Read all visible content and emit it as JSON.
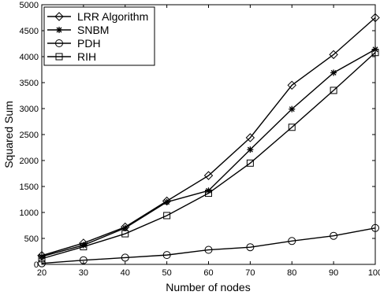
{
  "chart_data": {
    "type": "line",
    "title": "",
    "xlabel": "Number of nodes",
    "ylabel": "Squared Sum",
    "x": [
      20,
      30,
      40,
      50,
      60,
      70,
      80,
      90,
      100
    ],
    "xlim": [
      20,
      100
    ],
    "ylim": [
      0,
      5000
    ],
    "xticks": [
      "20",
      "30",
      "40",
      "50",
      "60",
      "70",
      "80",
      "90",
      "100"
    ],
    "yticks": [
      "0",
      "500",
      "1000",
      "1500",
      "2000",
      "2500",
      "3000",
      "3500",
      "4000",
      "4500",
      "5000"
    ],
    "grid": false,
    "legend_position": "top-left",
    "series": [
      {
        "name": "LRR Algorithm",
        "marker": "diamond",
        "color": "#000000",
        "values": [
          170,
          410,
          720,
          1220,
          1710,
          2440,
          3450,
          4040,
          4750
        ]
      },
      {
        "name": "SNBM",
        "marker": "asterisk",
        "color": "#000000",
        "values": [
          150,
          370,
          700,
          1200,
          1420,
          2210,
          2990,
          3690,
          4140
        ]
      },
      {
        "name": "PDH",
        "marker": "circle",
        "color": "#000000",
        "values": [
          20,
          80,
          130,
          180,
          280,
          330,
          450,
          550,
          700
        ]
      },
      {
        "name": "RIH",
        "marker": "square",
        "color": "#000000",
        "values": [
          110,
          340,
          590,
          940,
          1370,
          1950,
          2640,
          3350,
          4080
        ]
      }
    ]
  }
}
